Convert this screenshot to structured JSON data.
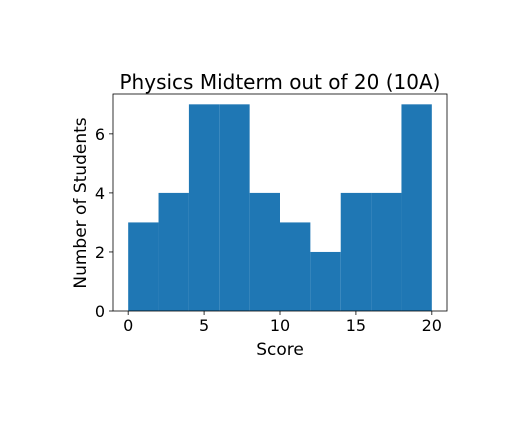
{
  "chart_data": {
    "type": "bar",
    "title": "Physics Midterm out of 20 (10A)",
    "xlabel": "Score",
    "ylabel": "Number of Students",
    "bin_edges": [
      0,
      2,
      4,
      6,
      8,
      10,
      12,
      14,
      16,
      18,
      20
    ],
    "values": [
      3,
      4,
      7,
      7,
      4,
      3,
      2,
      4,
      4,
      7
    ],
    "xlim": [
      -1,
      21
    ],
    "ylim": [
      0,
      7.35
    ],
    "xticks": [
      0,
      5,
      10,
      15,
      20
    ],
    "xtick_labels": [
      "0",
      "5",
      "10",
      "15",
      "20"
    ],
    "yticks": [
      0,
      2,
      4,
      6
    ],
    "ytick_labels": [
      "0",
      "2",
      "4",
      "6"
    ],
    "grid": false,
    "legend": "none",
    "colors": {
      "bar": "#1f77b4",
      "axes": "#000000",
      "background": "#ffffff"
    }
  }
}
